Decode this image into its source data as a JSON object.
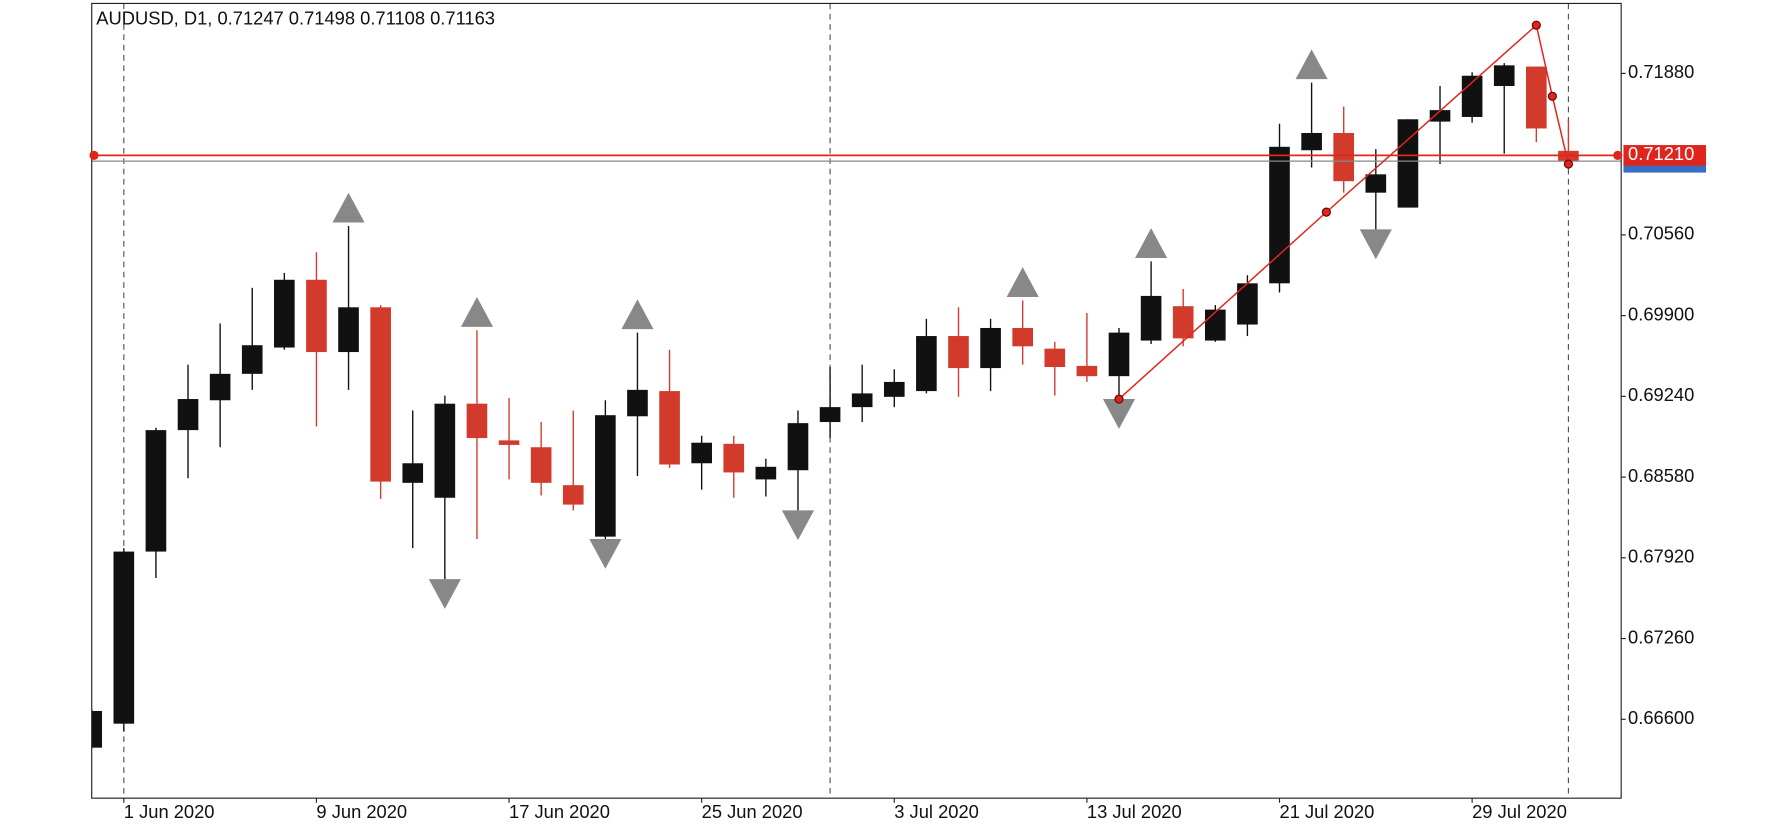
{
  "chart_data": {
    "type": "candlestick",
    "title": "AUDUSD, D1, 0.71247 0.71498 0.71108 0.71163",
    "categories": [
      null,
      "1 Jun 2020",
      null,
      null,
      null,
      null,
      null,
      "9 Jun 2020",
      null,
      null,
      null,
      null,
      null,
      "17 Jun 2020",
      null,
      null,
      null,
      null,
      null,
      "25 Jun 2020",
      null,
      null,
      null,
      null,
      null,
      "3 Jul 2020",
      null,
      null,
      null,
      null,
      null,
      "13 Jul 2020",
      null,
      null,
      null,
      null,
      null,
      "21 Jul 2020",
      null,
      null,
      null,
      null,
      null,
      "29 Jul 2020",
      null,
      null,
      null
    ],
    "open": [
      0.66368,
      0.66564,
      0.67971,
      0.68964,
      0.69208,
      0.69424,
      0.69639,
      0.70193,
      0.69602,
      0.69968,
      0.68533,
      0.68411,
      0.6918,
      0.6888,
      0.68824,
      0.68514,
      0.68093,
      0.69077,
      0.69283,
      0.68693,
      0.68852,
      0.68561,
      0.68636,
      0.6903,
      0.69152,
      0.69236,
      0.69283,
      0.69733,
      0.69471,
      0.69799,
      0.6963,
      0.69489,
      0.69405,
      0.69696,
      0.69977,
      0.69696,
      0.69827,
      0.70164,
      0.71252,
      0.71393,
      0.70905,
      0.70783,
      0.71486,
      0.71524,
      0.71777,
      0.71936,
      0.71247
    ],
    "high": [
      0.66686,
      0.67999,
      0.68983,
      0.69499,
      0.69836,
      0.70127,
      0.70249,
      0.70418,
      0.70633,
      0.69986,
      0.69124,
      0.69246,
      0.6978,
      0.69227,
      0.6903,
      0.69124,
      0.69208,
      0.69761,
      0.69621,
      0.68918,
      0.68918,
      0.6873,
      0.69124,
      0.6948,
      0.69499,
      0.69461,
      0.69874,
      0.69968,
      0.69874,
      0.70024,
      0.69686,
      0.69921,
      0.69799,
      0.70343,
      0.70118,
      0.69986,
      0.7023,
      0.71468,
      0.71805,
      0.71608,
      0.71261,
      0.71505,
      0.71777,
      0.71889,
      0.71964,
      0.71936,
      0.71498
    ],
    "low": [
      0.66358,
      0.66499,
      0.67755,
      0.68571,
      0.68824,
      0.69293,
      0.69621,
      0.68993,
      0.69293,
      0.68402,
      0.67999,
      0.67746,
      0.68074,
      0.68561,
      0.6843,
      0.68308,
      0.68074,
      0.68589,
      0.68655,
      0.68477,
      0.68411,
      0.68421,
      0.68308,
      0.68899,
      0.6903,
      0.69152,
      0.69264,
      0.69236,
      0.69283,
      0.69499,
      0.69246,
      0.69358,
      0.69218,
      0.69668,
      0.69649,
      0.69686,
      0.69733,
      0.70089,
      0.71111,
      0.70905,
      0.70605,
      0.70783,
      0.71139,
      0.71477,
      0.71224,
      0.71318,
      0.71108
    ],
    "close": [
      0.66668,
      0.67971,
      0.68964,
      0.69218,
      0.69424,
      0.69658,
      0.70193,
      0.69602,
      0.69968,
      0.68543,
      0.68693,
      0.6918,
      0.68899,
      0.68843,
      0.68533,
      0.68355,
      0.69086,
      0.69293,
      0.68683,
      0.68861,
      0.68618,
      0.68664,
      0.69021,
      0.69152,
      0.69264,
      0.69358,
      0.69733,
      0.69471,
      0.69799,
      0.69649,
      0.6948,
      0.69405,
      0.69761,
      0.70061,
      0.69714,
      0.69949,
      0.70164,
      0.7128,
      0.71393,
      0.70999,
      0.71055,
      0.71505,
      0.7158,
      0.71861,
      0.71946,
      0.7143,
      0.71163
    ],
    "up_color": "#111111",
    "down_color": "#d23a2b",
    "fractals_up": [
      null,
      null,
      null,
      null,
      null,
      null,
      null,
      null,
      0.70633,
      null,
      null,
      null,
      0.6978,
      null,
      null,
      null,
      null,
      0.69761,
      null,
      null,
      null,
      null,
      null,
      null,
      null,
      null,
      null,
      null,
      null,
      0.70024,
      null,
      null,
      null,
      0.70343,
      null,
      null,
      null,
      null,
      0.71805,
      null,
      null,
      null,
      null,
      null,
      null,
      null,
      null
    ],
    "fractals_down": [
      null,
      null,
      null,
      null,
      null,
      null,
      null,
      null,
      null,
      null,
      null,
      0.67746,
      null,
      null,
      null,
      null,
      0.68074,
      null,
      null,
      null,
      null,
      null,
      0.68308,
      null,
      null,
      null,
      null,
      null,
      null,
      null,
      null,
      null,
      0.69218,
      null,
      null,
      null,
      null,
      null,
      null,
      null,
      0.70605,
      null,
      null,
      null,
      null,
      null,
      null
    ],
    "fractal_color": "#888888",
    "zigzag": {
      "x": [
        32,
        38.46,
        45,
        45.5,
        46
      ],
      "values": [
        0.69218,
        0.70746,
        0.72274,
        0.71693,
        0.71139
      ],
      "color": "#e0261c"
    },
    "hline": {
      "value": 0.7121,
      "label": "0.71210",
      "color": "#e0261c"
    },
    "ylim": [
      0.65955,
      0.72452
    ],
    "yticks": [
      {
        "value": 0.666,
        "label": "0.66600"
      },
      {
        "value": 0.6726,
        "label": "0.67260"
      },
      {
        "value": 0.6792,
        "label": "0.67920"
      },
      {
        "value": 0.6858,
        "label": "0.68580"
      },
      {
        "value": 0.6924,
        "label": "0.69240"
      },
      {
        "value": 0.699,
        "label": "0.69900"
      },
      {
        "value": 0.7056,
        "label": "0.70560"
      },
      {
        "value": 0.7188,
        "label": "0.71880"
      }
    ]
  }
}
